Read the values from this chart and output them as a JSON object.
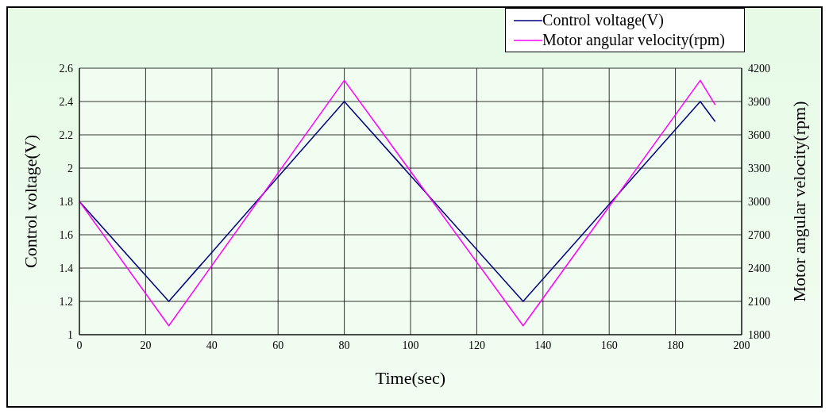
{
  "chart_data": {
    "type": "line",
    "xlabel": "Time(sec)",
    "ylabel": "Control voltage(V)",
    "y2label": "Motor angular velocity(rpm)",
    "xlim": [
      0,
      200
    ],
    "xticks": [
      0,
      20,
      40,
      60,
      80,
      100,
      120,
      140,
      160,
      180,
      200
    ],
    "ylim": [
      1,
      2.6
    ],
    "yticks": [
      1,
      1.2,
      1.4,
      1.6,
      1.8,
      2,
      2.2,
      2.4,
      2.6
    ],
    "y2lim": [
      1800,
      4200
    ],
    "y2ticks": [
      1800,
      2100,
      2400,
      2700,
      3000,
      3300,
      3600,
      3900,
      4200
    ],
    "grid": true,
    "legend": "top right",
    "marker": "none",
    "line_style": "solid",
    "series": [
      {
        "name": "Control voltage(V)",
        "color": "#000080",
        "x": [
          0,
          27,
          80,
          134,
          187.5,
          192
        ],
        "values": [
          1.8,
          1.2,
          2.4,
          1.2,
          2.4,
          2.28
        ]
      },
      {
        "name": "Motor angular velocity(rpm)",
        "color": "#ff00ff",
        "axis": "y2",
        "x": [
          0,
          27,
          80,
          134,
          187.5,
          192
        ],
        "values": [
          3000,
          1880,
          4090,
          1880,
          4090,
          3870
        ]
      }
    ]
  }
}
